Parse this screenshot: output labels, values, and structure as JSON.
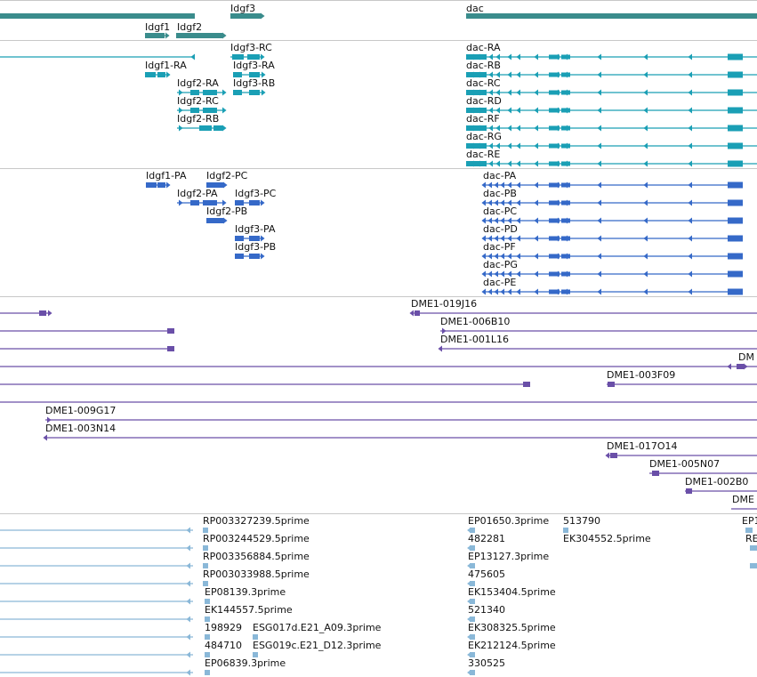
{
  "colors": {
    "gene": "#3a8c8c",
    "transcript": "#1a9fb5",
    "protein": "#3569c8",
    "clone": "#6a4fa8",
    "est": "#8ab8d8",
    "divider": "#c8c8c8",
    "label": "#111111"
  },
  "tracks": {
    "genes": [
      {
        "name": "",
        "label": ""
      },
      {
        "name": "Idgf3",
        "label": "Idgf3"
      },
      {
        "name": "dac",
        "label": "dac"
      },
      {
        "name": "Idgf1",
        "label": "Idgf1"
      },
      {
        "name": "Idgf2",
        "label": "Idgf2"
      }
    ],
    "transcripts": [
      {
        "label": ""
      },
      {
        "label": "Idgf3-RC"
      },
      {
        "label": "Idgf1-RA"
      },
      {
        "label": "Idgf3-RA"
      },
      {
        "label": "Idgf2-RA"
      },
      {
        "label": "Idgf3-RB"
      },
      {
        "label": "Idgf2-RC"
      },
      {
        "label": "Idgf2-RB"
      },
      {
        "label": "dac-RA"
      },
      {
        "label": "dac-RB"
      },
      {
        "label": "dac-RC"
      },
      {
        "label": "dac-RD"
      },
      {
        "label": "dac-RF"
      },
      {
        "label": "dac-RG"
      },
      {
        "label": "dac-RE"
      }
    ],
    "proteins": [
      {
        "label": "Idgf1-PA"
      },
      {
        "label": "Idgf2-PC"
      },
      {
        "label": "Idgf2-PA"
      },
      {
        "label": "Idgf3-PC"
      },
      {
        "label": "Idgf2-PB"
      },
      {
        "label": "Idgf3-PA"
      },
      {
        "label": "Idgf3-PB"
      },
      {
        "label": "dac-PA"
      },
      {
        "label": "dac-PB"
      },
      {
        "label": "dac-PC"
      },
      {
        "label": "dac-PD"
      },
      {
        "label": "dac-PF"
      },
      {
        "label": "dac-PG"
      },
      {
        "label": "dac-PE"
      }
    ],
    "clones": [
      {
        "label": ""
      },
      {
        "label": "DME1-019J16"
      },
      {
        "label": "DME1-006B10"
      },
      {
        "label": ""
      },
      {
        "label": "DME1-001L16"
      },
      {
        "label": ""
      },
      {
        "label": "DM"
      },
      {
        "label": ""
      },
      {
        "label": "DME1-003F09"
      },
      {
        "label": ""
      },
      {
        "label": "DME1-009G17"
      },
      {
        "label": "DME1-003N14"
      },
      {
        "label": "DME1-017O14"
      },
      {
        "label": "DME1-005N07"
      },
      {
        "label": "DME1-002B0"
      },
      {
        "label": "DME"
      }
    ],
    "ests": [
      {
        "label": "RP003327239.5prime"
      },
      {
        "label": "RP003244529.5prime"
      },
      {
        "label": "RP003356884.5prime"
      },
      {
        "label": "RP003033988.5prime"
      },
      {
        "label": "EP08139.3prime"
      },
      {
        "label": "EK144557.5prime"
      },
      {
        "label": "198929"
      },
      {
        "label": "ESG017d.E21_A09.3prime"
      },
      {
        "label": "484710"
      },
      {
        "label": "ESG019c.E21_D12.3prime"
      },
      {
        "label": "EP06839.3prime"
      },
      {
        "label": "EP01650.3prime"
      },
      {
        "label": "513790"
      },
      {
        "label": "482281"
      },
      {
        "label": "EK304552.5prime"
      },
      {
        "label": "EP13127.3prime"
      },
      {
        "label": "475605"
      },
      {
        "label": "EK153404.5prime"
      },
      {
        "label": "521340"
      },
      {
        "label": "EK308325.5prime"
      },
      {
        "label": "EK212124.5prime"
      },
      {
        "label": "330525"
      },
      {
        "label": "EP1"
      },
      {
        "label": "RE"
      },
      {
        "label": ""
      },
      {
        "label": ""
      },
      {
        "label": ""
      },
      {
        "label": ""
      }
    ]
  }
}
